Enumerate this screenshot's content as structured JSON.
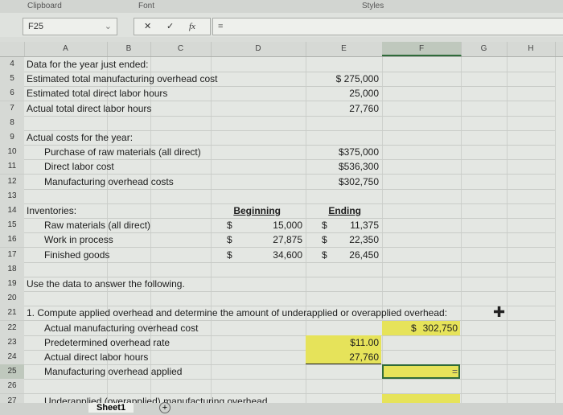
{
  "ribbon": {
    "groups": [
      "Clipboard",
      "Font",
      "Styles"
    ]
  },
  "formula_bar": {
    "name_box": "F25",
    "cancel": "✕",
    "enter": "✓",
    "fx": "fx",
    "formula": "="
  },
  "columns": [
    "A",
    "B",
    "C",
    "D",
    "E",
    "F",
    "G",
    "H"
  ],
  "selected_column": "F",
  "selected_cell": "F25",
  "rows": [
    {
      "n": "4",
      "cells": [
        {
          "col": "A",
          "text": "Data for the year just ended:"
        }
      ]
    },
    {
      "n": "5",
      "cells": [
        {
          "col": "A",
          "text": "Estimated total manufacturing overhead cost"
        },
        {
          "col": "E",
          "text": "$  275,000"
        }
      ]
    },
    {
      "n": "6",
      "cells": [
        {
          "col": "A",
          "text": "Estimated total direct labor hours"
        },
        {
          "col": "E",
          "text": "25,000"
        }
      ]
    },
    {
      "n": "7",
      "cells": [
        {
          "col": "A",
          "text": "Actual total direct labor hours"
        },
        {
          "col": "E",
          "text": "27,760"
        }
      ]
    },
    {
      "n": "8",
      "cells": []
    },
    {
      "n": "9",
      "cells": [
        {
          "col": "A",
          "text": "Actual costs for the year:"
        }
      ]
    },
    {
      "n": "10",
      "cells": [
        {
          "col": "A",
          "text": "Purchase of raw materials (all direct)",
          "indent": true
        },
        {
          "col": "E",
          "text": "$375,000"
        }
      ]
    },
    {
      "n": "11",
      "cells": [
        {
          "col": "A",
          "text": "Direct labor cost",
          "indent": true
        },
        {
          "col": "E",
          "text": "$536,300"
        }
      ]
    },
    {
      "n": "12",
      "cells": [
        {
          "col": "A",
          "text": "Manufacturing overhead costs",
          "indent": true
        },
        {
          "col": "E",
          "text": "$302,750"
        }
      ]
    },
    {
      "n": "13",
      "cells": []
    },
    {
      "n": "14",
      "cells": [
        {
          "col": "A",
          "text": "Inventories:"
        },
        {
          "col": "D",
          "text": "Beginning",
          "underline": true
        },
        {
          "col": "E",
          "text": "Ending",
          "underline": true
        }
      ]
    },
    {
      "n": "15",
      "cells": [
        {
          "col": "A",
          "text": "Raw materials (all direct)",
          "indent": true
        },
        {
          "col": "D",
          "cur": "$",
          "text": "15,000"
        },
        {
          "col": "E",
          "cur": "$",
          "text": "11,375"
        }
      ]
    },
    {
      "n": "16",
      "cells": [
        {
          "col": "A",
          "text": "Work in process",
          "indent": true
        },
        {
          "col": "D",
          "cur": "$",
          "text": "27,875"
        },
        {
          "col": "E",
          "cur": "$",
          "text": "22,350"
        }
      ]
    },
    {
      "n": "17",
      "cells": [
        {
          "col": "A",
          "text": "Finished goods",
          "indent": true
        },
        {
          "col": "D",
          "cur": "$",
          "text": "34,600"
        },
        {
          "col": "E",
          "cur": "$",
          "text": "26,450"
        }
      ]
    },
    {
      "n": "18",
      "cells": []
    },
    {
      "n": "19",
      "cells": [
        {
          "col": "A",
          "text": "Use the data to answer the following."
        }
      ]
    },
    {
      "n": "20",
      "cells": []
    },
    {
      "n": "21",
      "cells": [
        {
          "col": "A",
          "text": "1. Compute applied overhead and determine the amount of underapplied or overapplied overhead:"
        }
      ]
    },
    {
      "n": "22",
      "cells": [
        {
          "col": "A",
          "text": "Actual manufacturing overhead cost",
          "indent": true
        },
        {
          "col": "F",
          "cur": "$",
          "text": "302,750",
          "highlight": true
        }
      ]
    },
    {
      "n": "23",
      "cells": [
        {
          "col": "A",
          "text": "Predetermined overhead rate",
          "indent": true
        },
        {
          "col": "E",
          "text": "$11.00",
          "highlight": true
        }
      ]
    },
    {
      "n": "24",
      "cells": [
        {
          "col": "A",
          "text": "Actual direct labor hours",
          "indent": true
        },
        {
          "col": "E",
          "text": "27,760",
          "highlight": true,
          "bottom_border": true
        }
      ]
    },
    {
      "n": "25",
      "cells": [
        {
          "col": "A",
          "text": "Manufacturing overhead applied",
          "indent": true
        },
        {
          "col": "F",
          "text": "=",
          "highlight": true,
          "selected": true
        }
      ]
    },
    {
      "n": "26",
      "cells": []
    },
    {
      "n": "27",
      "cells": [
        {
          "col": "A",
          "text": "Underapplied (overapplied) manufacturing overhead",
          "indent": true
        },
        {
          "col": "F",
          "text": "",
          "highlight": true
        }
      ]
    }
  ],
  "sheet_tabs": [
    {
      "label": "Sheet1"
    }
  ],
  "add_sheet": "+",
  "colors": {
    "highlight": "#e6e35a",
    "selection": "#2f6b3a"
  }
}
